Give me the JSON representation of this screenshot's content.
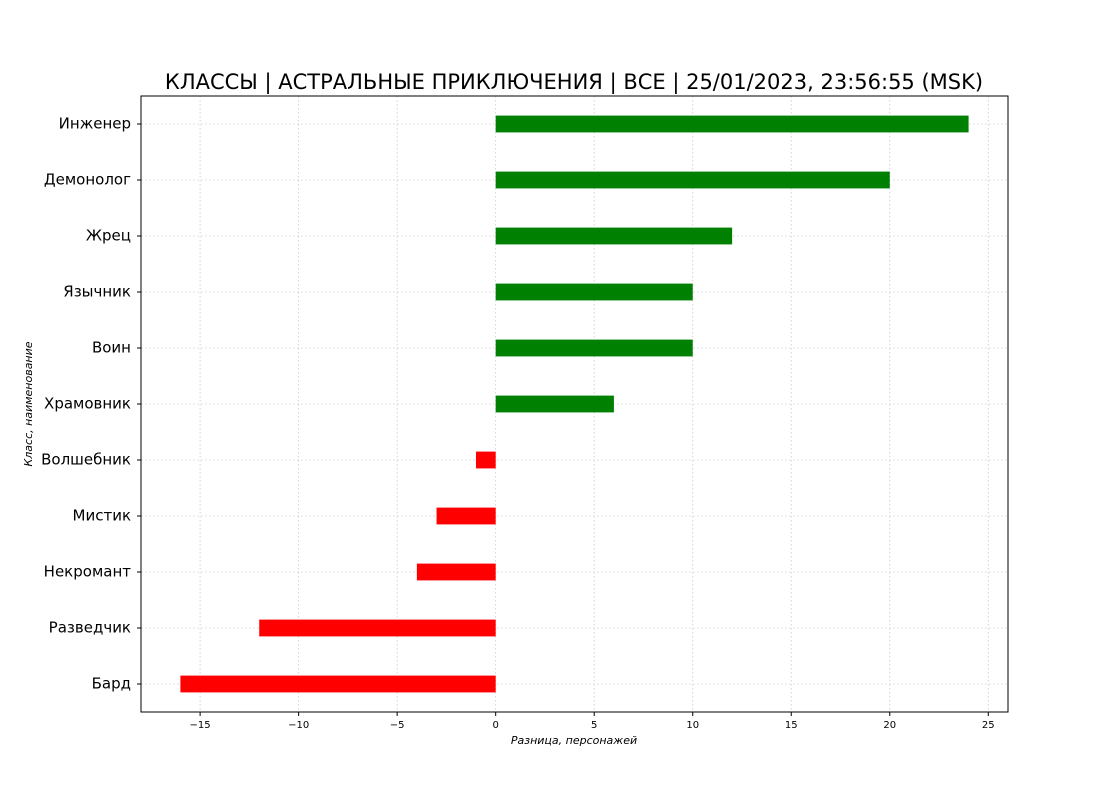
{
  "chart_data": {
    "type": "barh",
    "title": "КЛАССЫ | АСТРАЛЬНЫЕ ПРИКЛЮЧЕНИЯ | ВСЕ | 25/01/2023, 23:56:55 (MSK)",
    "x_label": "Разница, персонажей",
    "y_label": "Класс, наименование",
    "categories": [
      "Инженер",
      "Демонолог",
      "Жрец",
      "Язычник",
      "Воин",
      "Храмовник",
      "Волшебник",
      "Мистик",
      "Некромант",
      "Разведчик",
      "Бард"
    ],
    "values": [
      24,
      20,
      12,
      10,
      10,
      6,
      -1,
      -3,
      -4,
      -12,
      -16
    ],
    "colors": [
      "#008000",
      "#008000",
      "#008000",
      "#008000",
      "#008000",
      "#008000",
      "#ff0000",
      "#ff0000",
      "#ff0000",
      "#ff0000",
      "#ff0000"
    ],
    "xlim": [
      -18,
      26
    ],
    "xticks": [
      {
        "value": -15,
        "label": "−15"
      },
      {
        "value": -10,
        "label": "−10"
      },
      {
        "value": -5,
        "label": "−5"
      },
      0,
      5,
      10,
      15,
      20,
      25
    ],
    "grid": true
  }
}
